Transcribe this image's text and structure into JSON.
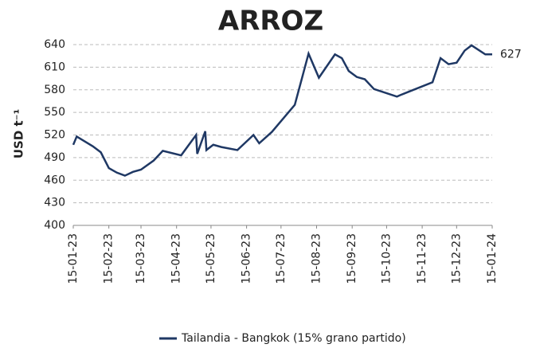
{
  "chart_data": {
    "type": "line",
    "title": "ARROZ",
    "y_label": "USD t⁻¹",
    "x": [
      "2023-01-15",
      "2023-01-18",
      "2023-02-01",
      "2023-02-08",
      "2023-02-15",
      "2023-02-22",
      "2023-03-01",
      "2023-03-08",
      "2023-03-15",
      "2023-03-26",
      "2023-04-03",
      "2023-04-19",
      "2023-05-02",
      "2023-05-03",
      "2023-05-10",
      "2023-05-11",
      "2023-05-17",
      "2023-05-24",
      "2023-06-07",
      "2023-06-21",
      "2023-06-26",
      "2023-07-07",
      "2023-07-27",
      "2023-08-08",
      "2023-08-17",
      "2023-08-31",
      "2023-09-06",
      "2023-09-12",
      "2023-09-19",
      "2023-09-26",
      "2023-10-04",
      "2023-10-24",
      "2023-10-27",
      "2023-11-24",
      "2023-12-01",
      "2023-12-08",
      "2023-12-15",
      "2023-12-22",
      "2023-12-28",
      "2024-01-09",
      "2024-01-15"
    ],
    "series": [
      {
        "name": "Tailandia - Bangkok (15% grano partido)",
        "color": "#1f3864",
        "values": [
          507,
          518,
          505,
          497,
          476,
          470,
          466,
          471,
          474,
          486,
          499,
          493,
          520,
          495,
          525,
          500,
          507,
          504,
          500,
          520,
          509,
          524,
          560,
          628,
          596,
          627,
          622,
          605,
          597,
          594,
          581,
          571,
          573,
          590,
          622,
          614,
          616,
          632,
          639,
          627,
          627
        ]
      }
    ],
    "annotation": {
      "text": "627"
    },
    "xlim": [
      "2023-01-15",
      "2024-01-15"
    ],
    "xticks": [
      {
        "value": "2023-01-15",
        "label": "15-01-23"
      },
      {
        "value": "2023-02-15",
        "label": "15-02-23"
      },
      {
        "value": "2023-03-15",
        "label": "15-03-23"
      },
      {
        "value": "2023-04-15",
        "label": "15-04-23"
      },
      {
        "value": "2023-05-15",
        "label": "15-05-23"
      },
      {
        "value": "2023-06-15",
        "label": "15-06-23"
      },
      {
        "value": "2023-07-15",
        "label": "15-07-23"
      },
      {
        "value": "2023-08-15",
        "label": "15-08-23"
      },
      {
        "value": "2023-09-15",
        "label": "15-09-23"
      },
      {
        "value": "2023-10-15",
        "label": "15-10-23"
      },
      {
        "value": "2023-11-15",
        "label": "15-11-23"
      },
      {
        "value": "2023-12-15",
        "label": "15-12-23"
      },
      {
        "value": "2024-01-15",
        "label": "15-01-24"
      }
    ],
    "ylim": [
      400,
      640
    ],
    "yticks": [
      400,
      430,
      460,
      490,
      520,
      550,
      580,
      610,
      640
    ],
    "grid": true,
    "legend": "bottom"
  }
}
